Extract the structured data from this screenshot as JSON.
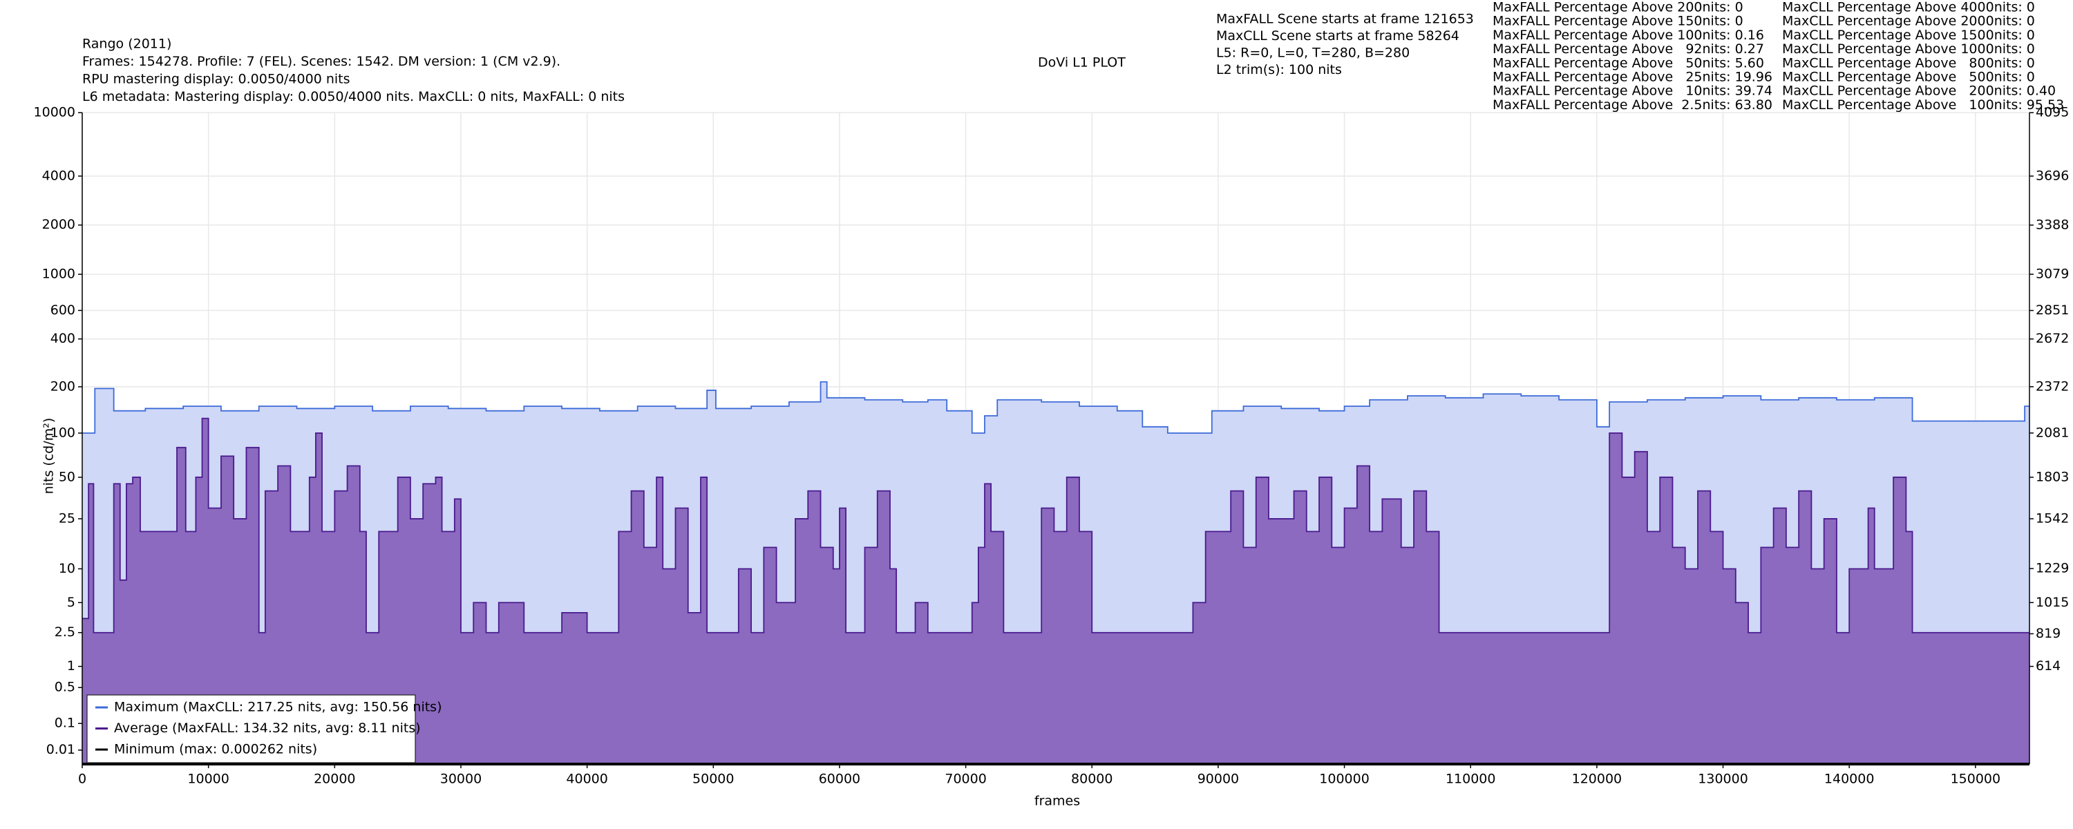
{
  "chart_data": {
    "type": "step",
    "title": "DoVi L1 PLOT",
    "header": [
      "Rango (2011)",
      "Frames: 154278. Profile: 7 (FEL). Scenes: 1542. DM version: 1 (CM v2.9).",
      "RPU mastering display: 0.0050/4000 nits",
      "L6 metadata: Mastering display: 0.0050/4000 nits. MaxCLL: 0 nits, MaxFALL: 0 nits"
    ],
    "info": [
      "MaxFALL Scene starts at frame 121653",
      "MaxCLL Scene starts at frame 58264",
      "L5: R=0, L=0, T=280, B=280",
      "L2 trim(s): 100 nits"
    ],
    "maxfall_stats": [
      "MaxFALL Percentage Above 200nits: 0",
      "MaxFALL Percentage Above 150nits: 0",
      "MaxFALL Percentage Above 100nits: 0.16",
      "MaxFALL Percentage Above   92nits: 0.27",
      "MaxFALL Percentage Above   50nits: 5.60",
      "MaxFALL Percentage Above   25nits: 19.96",
      "MaxFALL Percentage Above   10nits: 39.74",
      "MaxFALL Percentage Above  2.5nits: 63.80"
    ],
    "maxcll_stats": [
      "MaxCLL Percentage Above 4000nits: 0",
      "MaxCLL Percentage Above 2000nits: 0",
      "MaxCLL Percentage Above 1500nits: 0",
      "MaxCLL Percentage Above 1000nits: 0",
      "MaxCLL Percentage Above   800nits: 0",
      "MaxCLL Percentage Above   500nits: 0",
      "MaxCLL Percentage Above   200nits: 0.40",
      "MaxCLL Percentage Above   100nits: 95.53"
    ],
    "xlabel": "frames",
    "ylabel": "nits (cd/m²)",
    "xlim": [
      0,
      154278
    ],
    "xticks": [
      0,
      10000,
      20000,
      30000,
      40000,
      50000,
      60000,
      70000,
      80000,
      90000,
      100000,
      110000,
      120000,
      130000,
      140000,
      150000
    ],
    "ylim": [
      0,
      10000
    ],
    "yscale": "pq",
    "yticks": [
      0.01,
      0.1,
      0.5,
      1,
      2.5,
      5,
      10,
      25,
      50,
      100,
      200,
      400,
      600,
      1000,
      2000,
      4000,
      10000
    ],
    "y2lim": [
      0,
      4095
    ],
    "y2ticks": [
      614,
      819,
      1015,
      1229,
      1542,
      1803,
      2081,
      2372,
      2672,
      2851,
      3079,
      3388,
      3696,
      4095
    ],
    "grid": true,
    "legend": "lower left",
    "series": [
      {
        "name": "Maximum (MaxCLL: 217.25 nits, avg: 150.56 nits)",
        "color": "#3d6bd9",
        "fill": "#cfd8f6",
        "x": [
          0,
          1000,
          2500,
          5000,
          8000,
          11000,
          14000,
          17000,
          20000,
          23000,
          26000,
          29000,
          32000,
          35000,
          38000,
          41000,
          44000,
          47000,
          49500,
          50200,
          53000,
          56000,
          58500,
          59000,
          62000,
          65000,
          67000,
          68500,
          70500,
          71500,
          72500,
          76000,
          79000,
          82000,
          84000,
          86000,
          88000,
          89500,
          92000,
          95000,
          98000,
          100000,
          102000,
          105000,
          108000,
          111000,
          114000,
          117000,
          120000,
          121000,
          124000,
          127000,
          130000,
          133000,
          136000,
          139000,
          142000,
          145000,
          153900,
          154278
        ],
        "values": [
          100,
          195,
          140,
          145,
          150,
          140,
          150,
          145,
          150,
          140,
          150,
          145,
          140,
          150,
          145,
          140,
          150,
          145,
          190,
          145,
          150,
          160,
          215,
          170,
          165,
          160,
          165,
          140,
          100,
          130,
          165,
          160,
          150,
          140,
          110,
          100,
          100,
          140,
          150,
          145,
          140,
          150,
          165,
          175,
          170,
          180,
          175,
          165,
          110,
          160,
          165,
          170,
          175,
          165,
          170,
          165,
          170,
          120,
          150,
          150
        ]
      },
      {
        "name": "Average (MaxFALL: 134.32 nits, avg: 8.11 nits)",
        "color": "#4a1a8e",
        "fill": "#8b6abf",
        "x": [
          0,
          500,
          900,
          2500,
          3000,
          3500,
          4000,
          4600,
          7500,
          8200,
          9000,
          9500,
          10000,
          11000,
          12000,
          13000,
          14000,
          14500,
          15500,
          16500,
          18000,
          18500,
          19000,
          20000,
          21000,
          22000,
          22500,
          23500,
          25000,
          26000,
          27000,
          28000,
          28500,
          29500,
          30000,
          31000,
          32000,
          33000,
          35000,
          38000,
          40000,
          42500,
          43500,
          44500,
          45500,
          46000,
          47000,
          48000,
          49000,
          49500,
          52000,
          53000,
          54000,
          55000,
          56500,
          57500,
          58500,
          59500,
          60000,
          60500,
          62000,
          63000,
          64000,
          64500,
          66000,
          67000,
          70500,
          71000,
          71500,
          72000,
          73000,
          76000,
          77000,
          78000,
          79000,
          80000,
          88000,
          89000,
          91000,
          92000,
          93000,
          94000,
          96000,
          97000,
          98000,
          99000,
          100000,
          101000,
          102000,
          103000,
          104500,
          105500,
          106500,
          107500,
          121000,
          122000,
          123000,
          124000,
          125000,
          126000,
          127000,
          128000,
          129000,
          130000,
          131000,
          132000,
          133000,
          134000,
          135000,
          136000,
          137000,
          138000,
          139000,
          140000,
          141500,
          142000,
          143500,
          144500,
          145000,
          154278
        ],
        "values": [
          3.5,
          45,
          2.5,
          45,
          8,
          45,
          50,
          20,
          80,
          20,
          50,
          125,
          30,
          70,
          25,
          80,
          2.5,
          40,
          60,
          20,
          50,
          100,
          20,
          40,
          60,
          20,
          2.5,
          20,
          50,
          25,
          45,
          50,
          20,
          35,
          2.5,
          5,
          2.5,
          5,
          2.5,
          4,
          2.5,
          20,
          40,
          15,
          50,
          10,
          30,
          4,
          50,
          2.5,
          10,
          2.5,
          15,
          5,
          25,
          40,
          15,
          10,
          30,
          2.5,
          15,
          40,
          10,
          2.5,
          5,
          2.5,
          5,
          15,
          45,
          20,
          2.5,
          30,
          20,
          50,
          20,
          2.5,
          5,
          20,
          40,
          15,
          50,
          25,
          40,
          20,
          50,
          15,
          30,
          60,
          20,
          35,
          15,
          40,
          20,
          2.5,
          100,
          50,
          75,
          20,
          50,
          15,
          10,
          40,
          20,
          10,
          5,
          2.5,
          15,
          30,
          15,
          40,
          10,
          25,
          2.5,
          10,
          30,
          10,
          50,
          20,
          2.5,
          2.5
        ]
      },
      {
        "name": "Minimum (max: 0.000262 nits)",
        "color": "#000000",
        "x": [
          0,
          154278
        ],
        "values": [
          0,
          0
        ]
      }
    ]
  }
}
